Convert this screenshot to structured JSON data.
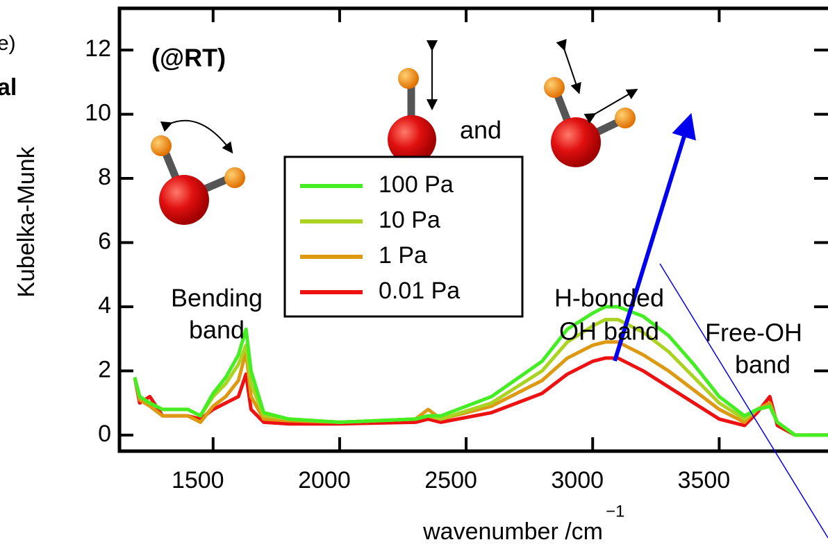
{
  "chart_data": {
    "type": "line",
    "y_label": "Kubelka-Munk",
    "x_label": "wavenumber /cm",
    "x_label_superscript": "−1",
    "annotations": [
      "(@RT)",
      "and",
      "Bending",
      "band",
      "H-bonded",
      "OH band",
      "Free-OH",
      "band"
    ],
    "side_text": [
      "e)",
      "al"
    ],
    "x": [
      1190,
      1210,
      1250,
      1300,
      1400,
      1450,
      1500,
      1550,
      1600,
      1630,
      1650,
      1700,
      1800,
      2000,
      2300,
      2350,
      2400,
      2600,
      2800,
      2900,
      3000,
      3050,
      3100,
      3200,
      3300,
      3400,
      3500,
      3600,
      3650,
      3700,
      3730,
      3800,
      3930
    ],
    "series": [
      {
        "name": "100 Pa",
        "color": "#44ee22",
        "values": [
          1.8,
          1.2,
          1.0,
          0.8,
          0.8,
          0.6,
          1.3,
          1.8,
          2.5,
          3.3,
          2.0,
          0.7,
          0.5,
          0.4,
          0.5,
          0.6,
          0.6,
          1.2,
          2.3,
          3.3,
          3.8,
          4.0,
          4.0,
          3.7,
          3.1,
          2.2,
          1.2,
          0.6,
          0.8,
          0.9,
          0.4,
          0,
          0
        ]
      },
      {
        "name": "10 Pa",
        "color": "#aad322",
        "values": [
          1.8,
          1.2,
          1.0,
          0.8,
          0.8,
          0.6,
          1.2,
          1.6,
          2.2,
          2.8,
          1.6,
          0.6,
          0.5,
          0.4,
          0.5,
          0.6,
          0.5,
          1.0,
          2.0,
          2.9,
          3.4,
          3.6,
          3.6,
          3.2,
          2.6,
          1.8,
          1.0,
          0.5,
          0.8,
          0.9,
          0.4,
          0,
          0
        ]
      },
      {
        "name": "1 Pa",
        "color": "#dd9911",
        "values": [
          1.8,
          1.1,
          0.9,
          0.6,
          0.6,
          0.4,
          0.9,
          1.2,
          1.7,
          2.6,
          1.2,
          0.5,
          0.45,
          0.4,
          0.5,
          0.8,
          0.5,
          0.9,
          1.7,
          2.4,
          2.8,
          2.9,
          2.9,
          2.5,
          2.0,
          1.4,
          0.8,
          0.4,
          0.8,
          1.0,
          0.4,
          0,
          0
        ]
      },
      {
        "name": "0.01 Pa",
        "color": "#ee1111",
        "values": [
          1.8,
          1.0,
          1.2,
          0.6,
          0.6,
          0.5,
          0.8,
          1.0,
          1.2,
          1.9,
          0.8,
          0.4,
          0.35,
          0.35,
          0.4,
          0.5,
          0.4,
          0.7,
          1.3,
          1.9,
          2.3,
          2.4,
          2.4,
          2.0,
          1.5,
          1.0,
          0.5,
          0.3,
          0.7,
          1.2,
          0.3,
          0,
          0
        ]
      }
    ],
    "xlim": [
      1130,
      3930
    ],
    "ylim": [
      -0.5,
      13.3
    ],
    "xticks": [
      1500,
      2000,
      2500,
      3000,
      3500
    ],
    "yticks": [
      0,
      2,
      4,
      6,
      8,
      10,
      12
    ]
  }
}
